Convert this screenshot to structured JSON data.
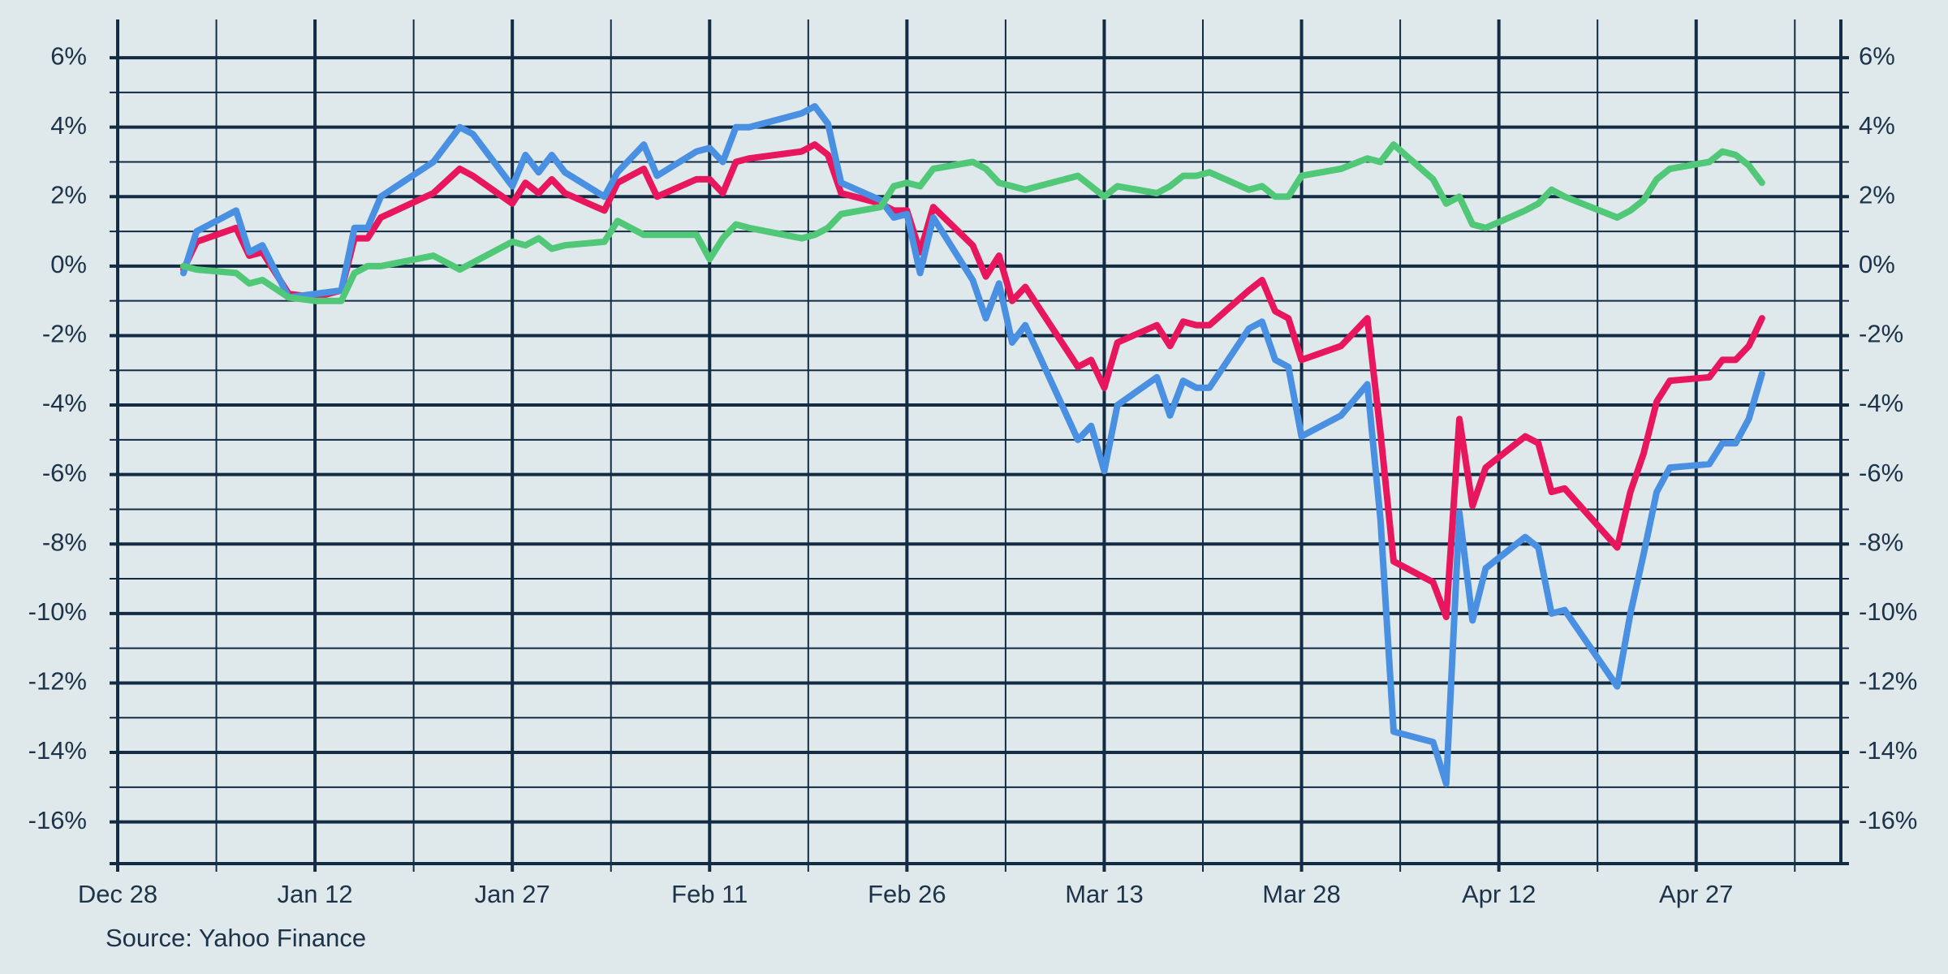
{
  "chart_data": {
    "type": "line",
    "source": "Source: Yahoo Finance",
    "x": [
      5,
      6,
      9,
      10,
      11,
      13,
      15,
      17,
      18,
      19,
      20,
      24,
      26,
      27,
      30,
      31,
      32,
      33,
      34,
      37,
      38,
      40,
      41,
      44,
      45,
      46,
      47,
      48,
      52,
      53,
      54,
      55,
      58,
      59,
      60,
      61,
      62,
      65,
      66,
      67,
      68,
      69,
      73,
      74,
      75,
      76,
      79,
      80,
      81,
      82,
      83,
      86,
      87,
      88,
      89,
      90,
      93,
      95,
      96,
      97,
      100,
      101,
      102,
      103,
      104,
      107,
      108,
      109,
      110,
      114,
      115,
      116,
      117,
      118,
      121,
      122,
      123,
      124,
      125
    ],
    "series": [
      {
        "color": "#e8175d",
        "values": [
          -0.1,
          0.7,
          1.1,
          0.3,
          0.4,
          -0.8,
          -0.9,
          -0.7,
          0.8,
          0.8,
          1.4,
          2.1,
          2.8,
          2.6,
          1.8,
          2.4,
          2.1,
          2.5,
          2.1,
          1.6,
          2.4,
          2.8,
          2.0,
          2.5,
          2.5,
          2.1,
          3.0,
          3.1,
          3.3,
          3.5,
          3.2,
          2.1,
          1.8,
          1.6,
          1.6,
          0.4,
          1.7,
          0.6,
          -0.3,
          0.3,
          -1.0,
          -0.6,
          -2.9,
          -2.7,
          -3.5,
          -2.2,
          -1.7,
          -2.3,
          -1.6,
          -1.7,
          -1.7,
          -0.7,
          -0.4,
          -1.3,
          -1.5,
          -2.7,
          -2.3,
          -1.5,
          -4.8,
          -8.5,
          -9.1,
          -10.1,
          -4.4,
          -6.9,
          -5.8,
          -4.9,
          -5.1,
          -6.5,
          -6.4,
          -8.1,
          -6.5,
          -5.4,
          -3.9,
          -3.3,
          -3.2,
          -2.7,
          -2.7,
          -2.3,
          -1.5
        ]
      },
      {
        "color": "#4a90e2",
        "values": [
          -0.2,
          1.0,
          1.6,
          0.4,
          0.6,
          -0.9,
          -0.8,
          -0.7,
          1.1,
          1.1,
          2.0,
          3.0,
          4.0,
          3.8,
          2.3,
          3.2,
          2.7,
          3.2,
          2.7,
          2.0,
          2.7,
          3.5,
          2.6,
          3.3,
          3.4,
          3.0,
          4.0,
          4.0,
          4.4,
          4.6,
          4.1,
          2.4,
          1.9,
          1.4,
          1.5,
          -0.2,
          1.4,
          -0.4,
          -1.5,
          -0.5,
          -2.2,
          -1.7,
          -5.0,
          -4.6,
          -5.9,
          -4.0,
          -3.2,
          -4.3,
          -3.3,
          -3.5,
          -3.5,
          -1.8,
          -1.6,
          -2.7,
          -2.9,
          -4.9,
          -4.3,
          -3.4,
          -7.3,
          -13.4,
          -13.7,
          -14.9,
          -7.1,
          -10.2,
          -8.7,
          -7.8,
          -8.1,
          -10.0,
          -9.9,
          -12.1,
          -10.0,
          -8.3,
          -6.5,
          -5.8,
          -5.7,
          -5.1,
          -5.1,
          -4.4,
          -3.1
        ]
      },
      {
        "color": "#50c878",
        "values": [
          0.0,
          -0.1,
          -0.2,
          -0.5,
          -0.4,
          -0.9,
          -1.0,
          -1.0,
          -0.2,
          0.0,
          0.0,
          0.3,
          -0.1,
          0.1,
          0.7,
          0.6,
          0.8,
          0.5,
          0.6,
          0.7,
          1.3,
          0.9,
          0.9,
          0.9,
          0.2,
          0.8,
          1.2,
          1.1,
          0.8,
          0.9,
          1.1,
          1.5,
          1.7,
          2.3,
          2.4,
          2.3,
          2.8,
          3.0,
          2.8,
          2.4,
          2.3,
          2.2,
          2.6,
          2.3,
          2.0,
          2.3,
          2.1,
          2.3,
          2.6,
          2.6,
          2.7,
          2.2,
          2.3,
          2.0,
          2.0,
          2.6,
          2.8,
          3.1,
          3.0,
          3.5,
          2.5,
          1.8,
          2.0,
          1.2,
          1.1,
          1.6,
          1.8,
          2.2,
          2.0,
          1.4,
          1.6,
          1.9,
          2.5,
          2.8,
          3.0,
          3.3,
          3.2,
          2.9,
          2.4
        ]
      }
    ],
    "xlim": [
      0,
      131
    ],
    "xticks": [
      {
        "value": 0,
        "label": "Dec 28"
      },
      {
        "value": 15,
        "label": "Jan 12"
      },
      {
        "value": 30,
        "label": "Jan 27"
      },
      {
        "value": 45,
        "label": "Feb 11"
      },
      {
        "value": 60,
        "label": "Feb 26"
      },
      {
        "value": 75,
        "label": "Mar 13"
      },
      {
        "value": 90,
        "label": "Mar 28"
      },
      {
        "value": 105,
        "label": "Apr 12"
      },
      {
        "value": 120,
        "label": "Apr 27"
      }
    ],
    "x_minor_ticks": [
      7.5,
      22.5,
      37.5,
      52.5,
      67.5,
      82.5,
      97.5,
      112.5,
      127.5
    ],
    "ylim": [
      -17.2,
      7.1
    ],
    "yticks": [
      {
        "value": -16,
        "label": "-16%"
      },
      {
        "value": -14,
        "label": "-14%"
      },
      {
        "value": -12,
        "label": "-12%"
      },
      {
        "value": -10,
        "label": "-10%"
      },
      {
        "value": -8,
        "label": "-8%"
      },
      {
        "value": -6,
        "label": "-6%"
      },
      {
        "value": -4,
        "label": "-4%"
      },
      {
        "value": -2,
        "label": "-2%"
      },
      {
        "value": 0,
        "label": "0%"
      },
      {
        "value": 2,
        "label": "2%"
      },
      {
        "value": 4,
        "label": "4%"
      },
      {
        "value": 6,
        "label": "6%"
      }
    ],
    "y_minor_ticks": [
      -15,
      -13,
      -11,
      -9,
      -7,
      -5,
      -3,
      -1,
      1,
      3,
      5
    ],
    "y_labels_both_sides": true,
    "grid": true
  }
}
